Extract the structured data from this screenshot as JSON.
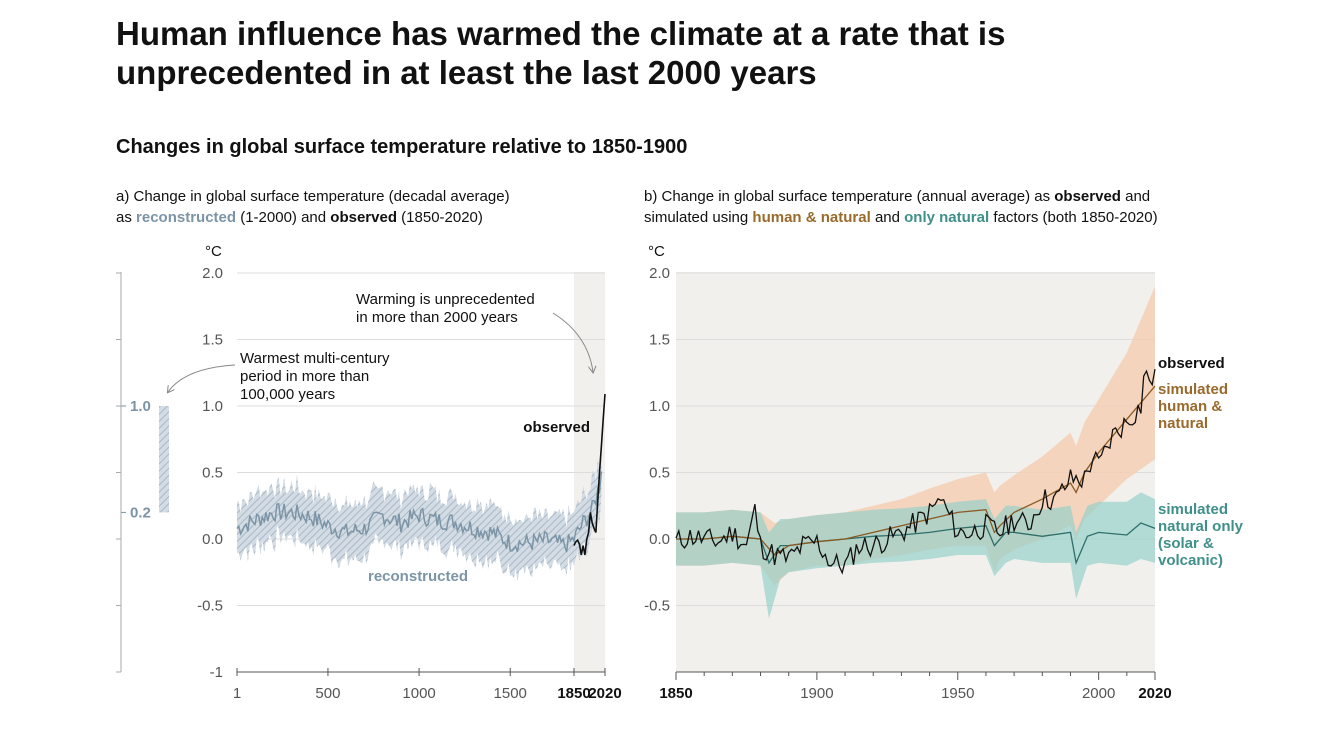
{
  "title": "Human influence has warmed the climate at a rate that is unprecedented in at least the last 2000 years",
  "subtitle": "Changes in global surface temperature relative to 1850-1900",
  "colors": {
    "reconstructed": "#7c95a6",
    "observed": "#111111",
    "human_natural": "#9a6a2c",
    "natural_only": "#3f8f8a",
    "hn_band": "#f5cdb2",
    "nat_band": "#8fcfc9",
    "recon_band": "#b9c6d1",
    "shade": "#f2f0ec"
  },
  "panel_a": {
    "caption": {
      "prefix": "a) Change in global surface temperature (decadal average)",
      "as": "as",
      "reconstructed": "reconstructed",
      "range1": "(1-2000) and",
      "observed": "observed",
      "range2": "(1850-2020)"
    },
    "unit": "°C",
    "annotation_warmest": [
      "Warmest multi-century",
      "period in more than",
      "100,000 years"
    ],
    "annotation_unprecedented": [
      "Warming is unprecedented",
      "in more than 2000 years"
    ],
    "range_bar_labels": [
      "1.0",
      "0.2"
    ]
  },
  "panel_b": {
    "caption": {
      "line1": "b) Change in global surface temperature (annual average) as",
      "observed": "observed",
      "and": "and",
      "line2": "simulated using",
      "human_natural": "human & natural",
      "and2": "and",
      "natural_only": "only natural",
      "line2_end": "factors (both 1850-2020)"
    },
    "unit": "°C"
  },
  "chart_data": [
    {
      "type": "line",
      "title": "a) Change in global surface temperature (decadal average)",
      "ylabel": "°C",
      "ylim": [
        -1,
        2
      ],
      "yticks": [
        -1,
        -0.5,
        0,
        0.5,
        1,
        1.5,
        2
      ],
      "ytick_labels": [
        "-1",
        "-0.5",
        "0.0",
        "0.5",
        "1.0",
        "1.5",
        "2.0"
      ],
      "xlim": [
        1,
        2020
      ],
      "xticks": [
        1,
        500,
        1000,
        1500,
        1850,
        2020
      ],
      "xtick_labels": [
        "1",
        "500",
        "1000",
        "1500",
        "1850",
        "2020"
      ],
      "shaded_period": [
        1850,
        2020
      ],
      "paleo_range": [
        0.2,
        1.0
      ],
      "series": [
        {
          "name": "reconstructed",
          "x": [
            1,
            100,
            200,
            300,
            400,
            500,
            600,
            700,
            800,
            900,
            1000,
            1100,
            1200,
            1300,
            1400,
            1500,
            1600,
            1700,
            1800,
            1850,
            1900,
            1950,
            1990,
            2000
          ],
          "y": [
            0.08,
            0.14,
            0.2,
            0.2,
            0.17,
            0.1,
            0.05,
            0.08,
            0.18,
            0.12,
            0.18,
            0.14,
            0.13,
            0.08,
            0.05,
            -0.03,
            -0.03,
            -0.01,
            -0.05,
            0.0,
            0.12,
            0.22,
            0.4,
            0.55
          ],
          "band_half_width": 0.2
        },
        {
          "name": "observed",
          "x": [
            1850,
            1860,
            1870,
            1880,
            1890,
            1900,
            1910,
            1920,
            1930,
            1940,
            1950,
            1960,
            1970,
            1980,
            1990,
            2000,
            2010,
            2020
          ],
          "y": [
            -0.05,
            -0.02,
            -0.01,
            -0.04,
            -0.12,
            -0.05,
            -0.12,
            0.0,
            0.05,
            0.2,
            0.12,
            0.08,
            0.05,
            0.28,
            0.5,
            0.7,
            0.9,
            1.09
          ]
        }
      ],
      "labels": {
        "observed": "observed",
        "reconstructed": "reconstructed"
      }
    },
    {
      "type": "line",
      "title": "b) Change in global surface temperature (annual average)",
      "ylabel": "°C",
      "ylim": [
        -1,
        2
      ],
      "yticks": [
        -0.5,
        0,
        0.5,
        1,
        1.5,
        2
      ],
      "ytick_labels": [
        "-0.5",
        "0.0",
        "0.5",
        "1.0",
        "1.5",
        "2.0"
      ],
      "xlim": [
        1850,
        2020
      ],
      "xticks": [
        1850,
        1900,
        1950,
        2000,
        2020
      ],
      "xtick_labels": [
        "1850",
        "1900",
        "1950",
        "2000",
        "2020"
      ],
      "series": [
        {
          "name": "observed",
          "x": [
            1850,
            1855,
            1860,
            1865,
            1870,
            1875,
            1878,
            1880,
            1885,
            1890,
            1895,
            1900,
            1905,
            1910,
            1915,
            1920,
            1925,
            1930,
            1935,
            1940,
            1944,
            1950,
            1955,
            1960,
            1965,
            1970,
            1975,
            1980,
            1985,
            1990,
            1995,
            1998,
            2000,
            2005,
            2010,
            2015,
            2016,
            2020
          ],
          "y": [
            -0.02,
            0.02,
            0.0,
            -0.02,
            0.05,
            -0.05,
            0.22,
            -0.05,
            -0.12,
            -0.15,
            -0.05,
            -0.02,
            -0.18,
            -0.2,
            -0.05,
            -0.05,
            0.0,
            0.05,
            0.12,
            0.2,
            0.3,
            0.05,
            0.05,
            0.1,
            0.05,
            0.15,
            0.1,
            0.3,
            0.3,
            0.45,
            0.45,
            0.62,
            0.55,
            0.78,
            0.88,
            1.0,
            1.22,
            1.2
          ],
          "label": "observed"
        },
        {
          "name": "simulated human & natural",
          "x": [
            1850,
            1860,
            1870,
            1880,
            1885,
            1890,
            1900,
            1910,
            1920,
            1930,
            1940,
            1950,
            1960,
            1963,
            1965,
            1970,
            1980,
            1990,
            1992,
            1995,
            2000,
            2010,
            2020
          ],
          "y": [
            0.0,
            0.0,
            0.02,
            0.0,
            -0.12,
            -0.05,
            -0.02,
            0.0,
            0.05,
            0.1,
            0.15,
            0.2,
            0.22,
            0.05,
            0.1,
            0.2,
            0.3,
            0.42,
            0.35,
            0.5,
            0.65,
            0.9,
            1.15
          ],
          "band_low": [
            -0.2,
            -0.2,
            -0.18,
            -0.2,
            -0.35,
            -0.25,
            -0.2,
            -0.2,
            -0.15,
            -0.12,
            -0.08,
            -0.05,
            -0.05,
            -0.25,
            -0.15,
            -0.08,
            0.0,
            0.1,
            0.0,
            0.15,
            0.25,
            0.45,
            0.6
          ],
          "band_high": [
            0.2,
            0.2,
            0.22,
            0.2,
            0.12,
            0.15,
            0.18,
            0.2,
            0.25,
            0.3,
            0.38,
            0.45,
            0.5,
            0.35,
            0.4,
            0.48,
            0.62,
            0.8,
            0.7,
            0.88,
            1.05,
            1.4,
            1.9
          ],
          "label": [
            "simulated",
            "human &",
            "natural"
          ]
        },
        {
          "name": "simulated natural only (solar & volcanic)",
          "x": [
            1850,
            1860,
            1870,
            1880,
            1883,
            1887,
            1890,
            1900,
            1910,
            1920,
            1930,
            1940,
            1950,
            1960,
            1963,
            1967,
            1970,
            1980,
            1990,
            1992,
            1996,
            2000,
            2010,
            2015,
            2020
          ],
          "y": [
            0.0,
            0.0,
            0.02,
            0.0,
            -0.18,
            -0.05,
            -0.05,
            -0.02,
            0.0,
            0.02,
            0.03,
            0.05,
            0.08,
            0.1,
            -0.05,
            0.05,
            0.05,
            0.02,
            0.05,
            -0.18,
            0.02,
            0.05,
            0.03,
            0.12,
            0.08
          ],
          "band_low": [
            -0.2,
            -0.2,
            -0.18,
            -0.2,
            -0.6,
            -0.3,
            -0.25,
            -0.22,
            -0.2,
            -0.18,
            -0.17,
            -0.15,
            -0.12,
            -0.12,
            -0.28,
            -0.18,
            -0.15,
            -0.18,
            -0.18,
            -0.45,
            -0.2,
            -0.18,
            -0.2,
            -0.15,
            -0.18
          ],
          "band_high": [
            0.2,
            0.2,
            0.22,
            0.2,
            0.05,
            0.15,
            0.15,
            0.18,
            0.2,
            0.22,
            0.23,
            0.25,
            0.28,
            0.3,
            0.15,
            0.25,
            0.25,
            0.22,
            0.25,
            0.05,
            0.25,
            0.28,
            0.28,
            0.35,
            0.3
          ],
          "label": [
            "simulated",
            "natural only",
            "(solar &",
            "volcanic)"
          ]
        }
      ]
    }
  ]
}
